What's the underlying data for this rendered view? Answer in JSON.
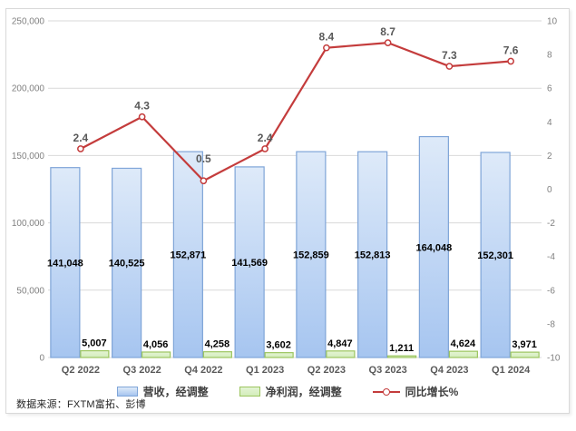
{
  "chart_data": {
    "type": "combo",
    "title": "",
    "categories": [
      "Q2 2022",
      "Q3 2022",
      "Q4 2022",
      "Q1 2023",
      "Q2 2023",
      "Q3 2023",
      "Q4 2023",
      "Q1 2024"
    ],
    "series": [
      {
        "name": "营收，经调整",
        "type": "bar",
        "axis": "left",
        "values": [
          141048,
          140525,
          152871,
          141569,
          152859,
          152813,
          164048,
          152301
        ],
        "labels": [
          "141,048",
          "140,525",
          "152,871",
          "141,569",
          "152,859",
          "152,813",
          "164,048",
          "152,301"
        ],
        "fill_top": "#DEEAF9",
        "fill_bottom": "#A6C5F0",
        "border": "#7FA5D8"
      },
      {
        "name": "净利润，经调整",
        "type": "bar",
        "axis": "left",
        "values": [
          5007,
          4056,
          4258,
          3602,
          4847,
          1211,
          4624,
          3971
        ],
        "labels": [
          "5,007",
          "4,056",
          "4,258",
          "3,602",
          "4,847",
          "1,211",
          "4,624",
          "3,971"
        ],
        "fill_top": "#E4F4D4",
        "fill_bottom": "#D3EDBB",
        "border": "#9CC55F"
      },
      {
        "name": "同比增长%",
        "type": "line",
        "axis": "right",
        "values": [
          2.4,
          4.3,
          0.5,
          2.4,
          8.4,
          8.7,
          7.3,
          7.6
        ],
        "labels": [
          "2.4",
          "4.3",
          "0.5",
          "2.4",
          "8.4",
          "8.7",
          "7.3",
          "7.6"
        ],
        "color": "#C43C3C"
      }
    ],
    "left_axis": {
      "min": 0,
      "max": 250000,
      "tick_labels": [
        "0",
        "50,000",
        "100,000",
        "150,000",
        "200,000",
        "250,000"
      ]
    },
    "right_axis": {
      "min": -10,
      "max": 10,
      "tick_labels": [
        "-10",
        "-8",
        "-6",
        "-4",
        "-2",
        "0",
        "2",
        "4",
        "6",
        "8",
        "10"
      ]
    },
    "grid": true,
    "legend_position": "bottom",
    "label_offsets": [
      -8,
      -8,
      -20,
      -8,
      -8,
      -8,
      -8,
      -8
    ]
  },
  "source_note": "数据来源：FXTM富拓、彭博",
  "colors": {
    "gridline": "#D9D9D9",
    "axis_text": "#808080",
    "category_text": "#595959",
    "bar_label": "#000000",
    "line_label": "#595959",
    "frame_border": "#D9D9D9",
    "legend_text": "#3F3F3F",
    "source_text": "#262626"
  }
}
